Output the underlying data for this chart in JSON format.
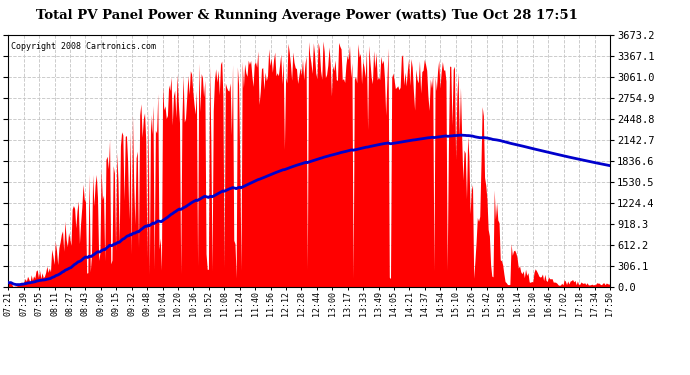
{
  "title": "Total PV Panel Power & Running Average Power (watts) Tue Oct 28 17:51",
  "copyright": "Copyright 2008 Cartronics.com",
  "background_color": "#ffffff",
  "bar_color": "#ff0000",
  "line_color": "#0000cc",
  "grid_color": "#c8c8c8",
  "ytick_values": [
    0.0,
    306.1,
    612.2,
    918.3,
    1224.4,
    1530.5,
    1836.6,
    2142.7,
    2448.8,
    2754.9,
    3061.0,
    3367.1,
    3673.2
  ],
  "ymax": 3673.2,
  "xtick_labels": [
    "07:21",
    "07:39",
    "07:55",
    "08:11",
    "08:27",
    "08:43",
    "09:00",
    "09:15",
    "09:32",
    "09:48",
    "10:04",
    "10:20",
    "10:36",
    "10:52",
    "11:08",
    "11:24",
    "11:40",
    "11:56",
    "12:12",
    "12:28",
    "12:44",
    "13:00",
    "13:17",
    "13:33",
    "13:49",
    "14:05",
    "14:21",
    "14:37",
    "14:54",
    "15:10",
    "15:26",
    "15:42",
    "15:58",
    "16:14",
    "16:30",
    "16:46",
    "17:02",
    "17:18",
    "17:34",
    "17:50"
  ]
}
